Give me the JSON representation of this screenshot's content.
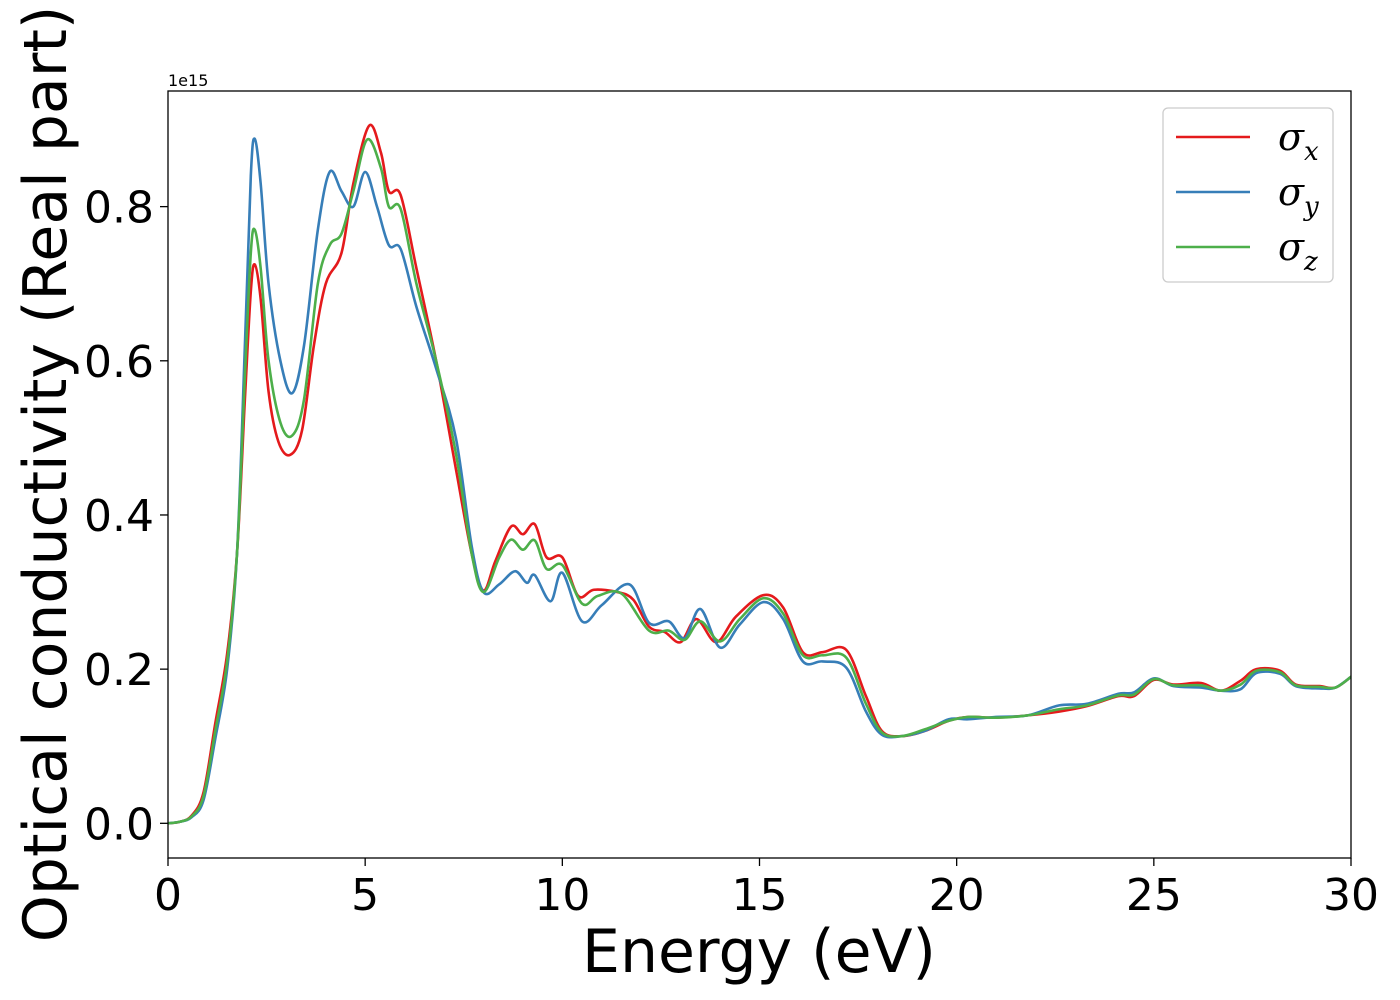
{
  "chart_data": {
    "type": "line",
    "title": "",
    "xlabel": "Energy (eV)",
    "ylabel": "Optical conductivity (Real part)",
    "y_offset_label": "1e15",
    "xlim": [
      0,
      30
    ],
    "ylim": [
      -0.045,
      0.95
    ],
    "xticks": [
      0,
      5,
      10,
      15,
      20,
      25,
      30
    ],
    "xtick_labels": [
      "0",
      "5",
      "10",
      "15",
      "20",
      "25",
      "30"
    ],
    "yticks": [
      0.0,
      0.2,
      0.4,
      0.6,
      0.8
    ],
    "ytick_labels": [
      "0.0",
      "0.2",
      "0.4",
      "0.6",
      "0.8"
    ],
    "grid": false,
    "legend_position": "top-right",
    "series": [
      {
        "name": "σx",
        "symbol": "σ",
        "subscript": "x",
        "color": "#e41a1c",
        "points": [
          [
            0,
            0
          ],
          [
            0.3,
            0.002
          ],
          [
            0.6,
            0.01
          ],
          [
            0.9,
            0.04
          ],
          [
            1.2,
            0.13
          ],
          [
            1.5,
            0.22
          ],
          [
            1.75,
            0.35
          ],
          [
            1.95,
            0.55
          ],
          [
            2.1,
            0.69
          ],
          [
            2.2,
            0.725
          ],
          [
            2.35,
            0.68
          ],
          [
            2.55,
            0.56
          ],
          [
            2.8,
            0.495
          ],
          [
            3.1,
            0.478
          ],
          [
            3.4,
            0.51
          ],
          [
            3.7,
            0.62
          ],
          [
            4.0,
            0.7
          ],
          [
            4.4,
            0.74
          ],
          [
            4.7,
            0.83
          ],
          [
            5.1,
            0.905
          ],
          [
            5.4,
            0.87
          ],
          [
            5.6,
            0.82
          ],
          [
            5.9,
            0.815
          ],
          [
            6.3,
            0.72
          ],
          [
            6.8,
            0.6
          ],
          [
            7.3,
            0.46
          ],
          [
            7.7,
            0.35
          ],
          [
            8.0,
            0.302
          ],
          [
            8.3,
            0.34
          ],
          [
            8.7,
            0.385
          ],
          [
            9.0,
            0.375
          ],
          [
            9.3,
            0.388
          ],
          [
            9.6,
            0.345
          ],
          [
            10.0,
            0.345
          ],
          [
            10.4,
            0.295
          ],
          [
            10.8,
            0.303
          ],
          [
            11.4,
            0.3
          ],
          [
            11.8,
            0.29
          ],
          [
            12.2,
            0.255
          ],
          [
            12.6,
            0.248
          ],
          [
            13.0,
            0.235
          ],
          [
            13.4,
            0.265
          ],
          [
            13.9,
            0.235
          ],
          [
            14.4,
            0.268
          ],
          [
            15.1,
            0.296
          ],
          [
            15.6,
            0.28
          ],
          [
            16.1,
            0.222
          ],
          [
            16.6,
            0.222
          ],
          [
            17.2,
            0.225
          ],
          [
            17.7,
            0.165
          ],
          [
            18.1,
            0.12
          ],
          [
            18.6,
            0.113
          ],
          [
            19.2,
            0.12
          ],
          [
            19.8,
            0.133
          ],
          [
            20.3,
            0.138
          ],
          [
            21.0,
            0.137
          ],
          [
            21.8,
            0.14
          ],
          [
            22.6,
            0.145
          ],
          [
            23.3,
            0.152
          ],
          [
            24.1,
            0.165
          ],
          [
            24.5,
            0.165
          ],
          [
            25.0,
            0.186
          ],
          [
            25.5,
            0.18
          ],
          [
            26.2,
            0.182
          ],
          [
            26.7,
            0.172
          ],
          [
            27.2,
            0.185
          ],
          [
            27.6,
            0.2
          ],
          [
            28.2,
            0.198
          ],
          [
            28.6,
            0.18
          ],
          [
            29.2,
            0.178
          ],
          [
            29.6,
            0.176
          ],
          [
            30.0,
            0.19
          ]
        ]
      },
      {
        "name": "σy",
        "symbol": "σ",
        "subscript": "y",
        "color": "#377eb8",
        "points": [
          [
            0,
            0
          ],
          [
            0.3,
            0.002
          ],
          [
            0.6,
            0.008
          ],
          [
            0.9,
            0.03
          ],
          [
            1.2,
            0.11
          ],
          [
            1.5,
            0.2
          ],
          [
            1.75,
            0.35
          ],
          [
            1.95,
            0.62
          ],
          [
            2.1,
            0.84
          ],
          [
            2.2,
            0.888
          ],
          [
            2.35,
            0.83
          ],
          [
            2.55,
            0.7
          ],
          [
            2.85,
            0.6
          ],
          [
            3.15,
            0.558
          ],
          [
            3.45,
            0.62
          ],
          [
            3.8,
            0.77
          ],
          [
            4.1,
            0.845
          ],
          [
            4.4,
            0.82
          ],
          [
            4.7,
            0.8
          ],
          [
            5.0,
            0.845
          ],
          [
            5.3,
            0.8
          ],
          [
            5.6,
            0.75
          ],
          [
            5.9,
            0.745
          ],
          [
            6.3,
            0.67
          ],
          [
            6.8,
            0.59
          ],
          [
            7.3,
            0.5
          ],
          [
            7.7,
            0.36
          ],
          [
            8.0,
            0.3
          ],
          [
            8.4,
            0.31
          ],
          [
            8.8,
            0.327
          ],
          [
            9.1,
            0.312
          ],
          [
            9.3,
            0.322
          ],
          [
            9.7,
            0.288
          ],
          [
            10.0,
            0.325
          ],
          [
            10.5,
            0.262
          ],
          [
            11.0,
            0.283
          ],
          [
            11.7,
            0.31
          ],
          [
            12.2,
            0.26
          ],
          [
            12.7,
            0.262
          ],
          [
            13.1,
            0.24
          ],
          [
            13.5,
            0.278
          ],
          [
            14.0,
            0.228
          ],
          [
            14.5,
            0.258
          ],
          [
            15.1,
            0.287
          ],
          [
            15.6,
            0.265
          ],
          [
            16.1,
            0.21
          ],
          [
            16.6,
            0.21
          ],
          [
            17.2,
            0.202
          ],
          [
            17.7,
            0.145
          ],
          [
            18.1,
            0.115
          ],
          [
            18.6,
            0.113
          ],
          [
            19.2,
            0.12
          ],
          [
            19.8,
            0.135
          ],
          [
            20.3,
            0.135
          ],
          [
            21.0,
            0.138
          ],
          [
            21.8,
            0.14
          ],
          [
            22.6,
            0.153
          ],
          [
            23.3,
            0.155
          ],
          [
            24.1,
            0.168
          ],
          [
            24.5,
            0.17
          ],
          [
            25.0,
            0.188
          ],
          [
            25.5,
            0.178
          ],
          [
            26.2,
            0.176
          ],
          [
            26.7,
            0.172
          ],
          [
            27.2,
            0.174
          ],
          [
            27.6,
            0.195
          ],
          [
            28.2,
            0.194
          ],
          [
            28.6,
            0.178
          ],
          [
            29.2,
            0.175
          ],
          [
            29.6,
            0.176
          ],
          [
            30.0,
            0.19
          ]
        ]
      },
      {
        "name": "σz",
        "symbol": "σ",
        "subscript": "z",
        "color": "#4daf4a",
        "points": [
          [
            0,
            0
          ],
          [
            0.3,
            0.002
          ],
          [
            0.6,
            0.009
          ],
          [
            0.9,
            0.035
          ],
          [
            1.2,
            0.12
          ],
          [
            1.5,
            0.21
          ],
          [
            1.75,
            0.35
          ],
          [
            1.95,
            0.58
          ],
          [
            2.1,
            0.74
          ],
          [
            2.2,
            0.77
          ],
          [
            2.35,
            0.72
          ],
          [
            2.55,
            0.6
          ],
          [
            2.85,
            0.52
          ],
          [
            3.15,
            0.503
          ],
          [
            3.45,
            0.55
          ],
          [
            3.8,
            0.7
          ],
          [
            4.1,
            0.75
          ],
          [
            4.4,
            0.765
          ],
          [
            4.7,
            0.82
          ],
          [
            5.05,
            0.887
          ],
          [
            5.4,
            0.85
          ],
          [
            5.6,
            0.8
          ],
          [
            5.9,
            0.797
          ],
          [
            6.3,
            0.7
          ],
          [
            6.8,
            0.6
          ],
          [
            7.3,
            0.48
          ],
          [
            7.7,
            0.35
          ],
          [
            8.0,
            0.3
          ],
          [
            8.4,
            0.345
          ],
          [
            8.7,
            0.368
          ],
          [
            9.0,
            0.355
          ],
          [
            9.3,
            0.367
          ],
          [
            9.6,
            0.33
          ],
          [
            10.0,
            0.335
          ],
          [
            10.5,
            0.285
          ],
          [
            10.9,
            0.295
          ],
          [
            11.5,
            0.298
          ],
          [
            12.2,
            0.25
          ],
          [
            12.7,
            0.25
          ],
          [
            13.1,
            0.238
          ],
          [
            13.5,
            0.262
          ],
          [
            14.0,
            0.236
          ],
          [
            14.5,
            0.265
          ],
          [
            15.1,
            0.292
          ],
          [
            15.6,
            0.272
          ],
          [
            16.1,
            0.218
          ],
          [
            16.6,
            0.218
          ],
          [
            17.2,
            0.215
          ],
          [
            17.7,
            0.155
          ],
          [
            18.1,
            0.118
          ],
          [
            18.6,
            0.113
          ],
          [
            19.2,
            0.122
          ],
          [
            19.8,
            0.133
          ],
          [
            20.3,
            0.138
          ],
          [
            21.0,
            0.137
          ],
          [
            21.8,
            0.14
          ],
          [
            22.6,
            0.148
          ],
          [
            23.3,
            0.153
          ],
          [
            24.1,
            0.166
          ],
          [
            24.5,
            0.167
          ],
          [
            25.0,
            0.187
          ],
          [
            25.5,
            0.179
          ],
          [
            26.2,
            0.179
          ],
          [
            26.7,
            0.172
          ],
          [
            27.2,
            0.18
          ],
          [
            27.6,
            0.198
          ],
          [
            28.2,
            0.196
          ],
          [
            28.6,
            0.179
          ],
          [
            29.2,
            0.177
          ],
          [
            29.6,
            0.176
          ],
          [
            30.0,
            0.19
          ]
        ]
      }
    ]
  }
}
